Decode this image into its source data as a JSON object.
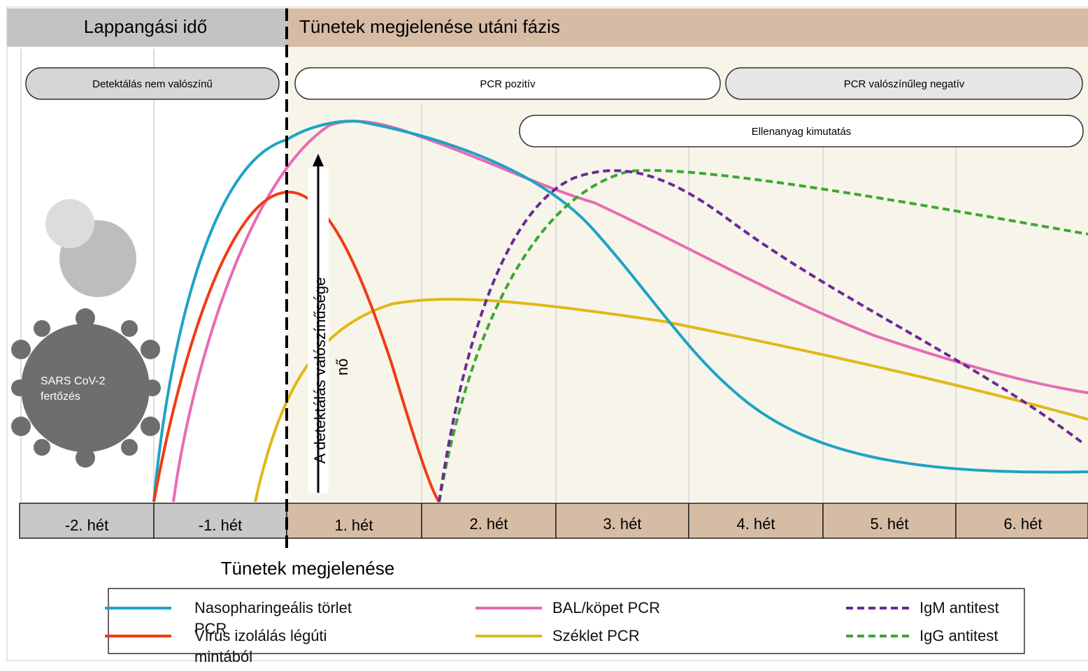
{
  "header": {
    "phases": [
      "Lappangási idő",
      "Tünetek megjelenése utáni fázis"
    ]
  },
  "pills": [
    "Detektálás nem valószínű",
    "PCR pozitív",
    "PCR  valószínűleg negatív",
    "Ellenanyag kimutatás"
  ],
  "arrow_label": [
    "A detektálás valószínűsége",
    "nő"
  ],
  "virus_label": "SARS CoV-2 fertőzés",
  "weeks": [
    "-2. hét",
    "-1. hét",
    "1. hét",
    "2. hét",
    "3. hét",
    "4. hét",
    "5. hét",
    "6. hét"
  ],
  "onset_label": "Tünetek megjelenése",
  "legend": [
    {
      "name": "Nasopharingeális törlet PCR",
      "color": "#1fa3c4",
      "dashed": false
    },
    {
      "name": "Vírus izolálás légúti mintából",
      "color": "#f03c14",
      "dashed": false
    },
    {
      "name": "BAL/köpet PCR",
      "color": "#e86ab4",
      "dashed": false
    },
    {
      "name": "Széklet PCR",
      "color": "#e0b818",
      "dashed": false
    },
    {
      "name": "IgM antitest",
      "color": "#6a2a96",
      "dashed": true
    },
    {
      "name": "IgG antitest",
      "color": "#3aa830",
      "dashed": true
    }
  ]
}
